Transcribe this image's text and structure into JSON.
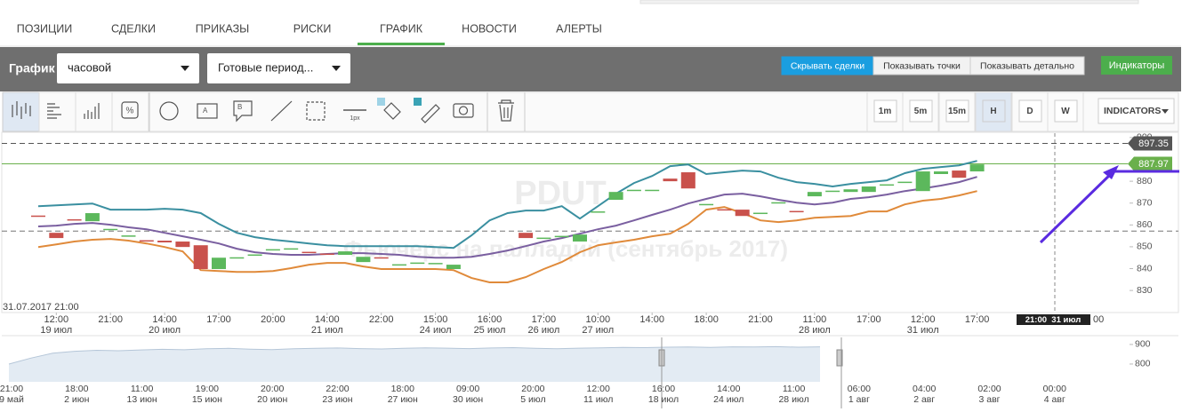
{
  "tabs": [
    "ПОЗИЦИИ",
    "СДЕЛКИ",
    "ПРИКАЗЫ",
    "РИСКИ",
    "ГРАФИК",
    "НОВОСТИ",
    "АЛЕРТЫ"
  ],
  "active_tab": 4,
  "toolbar": {
    "label": "График",
    "period": "часовой",
    "preset": "Готовые период...",
    "view_buttons": [
      "Скрывать сделки",
      "Показывать точки",
      "Показывать детально"
    ],
    "active_view_button": 0,
    "indicators_button": "Индикаторы"
  },
  "tools": {
    "icon_texts": [
      "A",
      "B",
      "1px"
    ],
    "intervals": [
      "1m",
      "5m",
      "15m",
      "H",
      "D",
      "W"
    ],
    "active_interval": 3,
    "indicators_dropdown": "INDICATORS"
  },
  "chart_data": {
    "type": "candlestick",
    "title": "PDUT",
    "subtitle": "Фьючерс на палладий (сентябрь 2017)",
    "start_label": "31.07.2017 21:00",
    "crosshair_label": "21:00  31 июл",
    "cut_label": "00",
    "categories": [
      null,
      "12:00",
      null,
      null,
      "21:00",
      null,
      null,
      "14:00",
      null,
      null,
      "17:00",
      null,
      null,
      "20:00",
      null,
      null,
      "14:00",
      null,
      null,
      "22:00",
      null,
      null,
      "15:00",
      null,
      null,
      "16:00",
      null,
      null,
      "17:00",
      null,
      null,
      "10:00",
      null,
      null,
      "14:00",
      null,
      null,
      "18:00",
      null,
      null,
      "21:00",
      null,
      null,
      "11:00",
      null,
      null,
      "17:00",
      null,
      null,
      "12:00",
      null,
      null,
      "17:00"
    ],
    "dates": [
      null,
      "19 июл",
      null,
      null,
      null,
      null,
      null,
      "20 июл",
      null,
      null,
      null,
      null,
      null,
      null,
      null,
      null,
      "21 июл",
      null,
      null,
      null,
      null,
      null,
      "24 июл",
      null,
      null,
      "25 июл",
      null,
      null,
      "26 июл",
      null,
      null,
      "27 июл",
      null,
      null,
      null,
      null,
      null,
      null,
      null,
      null,
      null,
      null,
      null,
      "28 июл",
      null,
      null,
      null,
      null,
      null,
      "31 июл",
      null,
      null,
      null
    ],
    "open": [
      864.3,
      856.4,
      862.6,
      861.7,
      858.0,
      855.0,
      853.0,
      852.8,
      852.4,
      850.7,
      839.8,
      845.0,
      846.3,
      848.7,
      849.1,
      847.7,
      846.9,
      846.3,
      843.0,
      845.2,
      841.8,
      842.6,
      842.4,
      839.8,
      null,
      null,
      null,
      856.4,
      854.0,
      854.8,
      852.4,
      866.0,
      871.5,
      875.9,
      875.9,
      881.2,
      884.1,
      869.4,
      867.2,
      867.0,
      865.4,
      870.2,
      866.4,
      873.1,
      875.5,
      875.1,
      875.1,
      878.4,
      879.6,
      875.5,
      883.3,
      884.9,
      884.5
    ],
    "close": [
      864.1,
      854.0,
      862.4,
      865.4,
      858.2,
      855.2,
      852.6,
      852.0,
      849.9,
      839.8,
      845.0,
      845.2,
      846.5,
      848.9,
      849.3,
      847.5,
      846.7,
      847.9,
      845.4,
      845.0,
      842.0,
      842.8,
      842.6,
      841.8,
      null,
      null,
      null,
      854.0,
      854.2,
      855.0,
      855.6,
      866.2,
      875.1,
      876.1,
      876.1,
      880.0,
      876.7,
      869.6,
      867.0,
      864.1,
      865.6,
      870.4,
      866.2,
      875.1,
      875.7,
      876.3,
      877.6,
      878.6,
      879.8,
      884.5,
      884.5,
      881.6,
      887.7
    ],
    "up_color": "#5cb85c",
    "down_color": "#c9514c",
    "lines": [
      {
        "color": "#3a8fa0",
        "values": [
          868.6,
          869.0,
          869.4,
          869.8,
          867.0,
          867.0,
          867.0,
          867.4,
          867.0,
          865.4,
          860.5,
          856.4,
          854.4,
          853.2,
          852.4,
          851.5,
          850.7,
          850.3,
          850.3,
          850.3,
          850.3,
          850.3,
          849.9,
          849.5,
          855.2,
          862.1,
          865.4,
          866.6,
          866.6,
          868.6,
          862.9,
          868.6,
          874.3,
          879.2,
          882.4,
          886.9,
          887.7,
          883.3,
          884.1,
          884.9,
          884.5,
          881.6,
          879.6,
          878.8,
          877.6,
          878.8,
          879.6,
          880.4,
          883.7,
          885.7,
          886.5,
          887.3,
          889.3
        ]
      },
      {
        "color": "#7a5fa0",
        "values": [
          859.3,
          859.7,
          860.5,
          860.9,
          860.1,
          858.9,
          858.0,
          856.4,
          854.8,
          853.2,
          851.5,
          849.1,
          847.5,
          846.7,
          846.3,
          846.3,
          846.7,
          847.1,
          847.1,
          846.7,
          846.3,
          845.4,
          845.0,
          845.0,
          845.4,
          846.7,
          848.3,
          850.3,
          852.4,
          854.0,
          856.0,
          858.0,
          859.7,
          862.1,
          864.6,
          867.0,
          869.8,
          871.9,
          873.9,
          874.3,
          873.1,
          871.5,
          870.2,
          869.4,
          870.2,
          871.9,
          872.7,
          873.9,
          875.5,
          876.7,
          878.0,
          879.6,
          882.0
        ]
      },
      {
        "color": "#e08a3a",
        "values": [
          849.9,
          851.1,
          852.4,
          853.2,
          853.6,
          852.8,
          851.5,
          849.9,
          847.9,
          839.3,
          838.9,
          838.5,
          838.5,
          838.9,
          840.2,
          841.8,
          842.6,
          842.6,
          841.0,
          839.8,
          839.8,
          839.8,
          839.8,
          839.3,
          835.7,
          833.7,
          833.7,
          836.1,
          839.8,
          843.0,
          847.5,
          850.7,
          852.0,
          853.2,
          854.8,
          856.0,
          860.5,
          867.0,
          868.2,
          865.4,
          862.1,
          861.3,
          862.1,
          863.3,
          863.7,
          864.1,
          866.2,
          866.2,
          869.4,
          871.1,
          871.9,
          873.5,
          875.5
        ]
      }
    ],
    "ylim": [
      820.7,
      902
    ],
    "yticks": [
      830,
      840,
      850,
      860,
      870,
      880,
      900
    ],
    "price_lines": [
      {
        "value": 897.35,
        "color": "#555555",
        "dashed": true
      },
      {
        "value": 887.97,
        "color": "#6ab04c",
        "dashed": false
      }
    ],
    "reference_line": 857.2,
    "navigator": {
      "color": "#e3ebf3",
      "line_color": "#b5c6d8",
      "values": [
        800,
        830,
        855,
        865,
        870,
        868,
        872,
        875,
        873,
        878,
        880,
        876,
        874,
        878,
        880,
        882,
        879,
        877,
        880,
        883,
        881,
        879,
        882,
        884,
        880,
        878,
        881,
        883,
        885,
        884,
        886,
        887,
        885,
        888,
        887,
        889,
        886,
        888
      ],
      "ylim": [
        709,
        936
      ],
      "yticks": [
        800,
        900
      ],
      "times": [
        "21:00",
        "18:00",
        "11:00",
        "19:00",
        "20:00",
        "22:00",
        "18:00",
        "09:00",
        "20:00",
        "12:00",
        "16:00",
        "14:00",
        "11:00",
        "06:00",
        "04:00",
        "02:00",
        "00:00"
      ],
      "dates": [
        "9 май",
        "2 июн",
        "13 июн",
        "15 июн",
        "20 июн",
        "23 июн",
        "27 июн",
        "30 июн",
        "5 июл",
        "11 июл",
        "18 июл",
        "24 июл",
        "28 июл",
        "1 авг",
        "2 авг",
        "3 авг",
        "4 авг"
      ]
    }
  }
}
